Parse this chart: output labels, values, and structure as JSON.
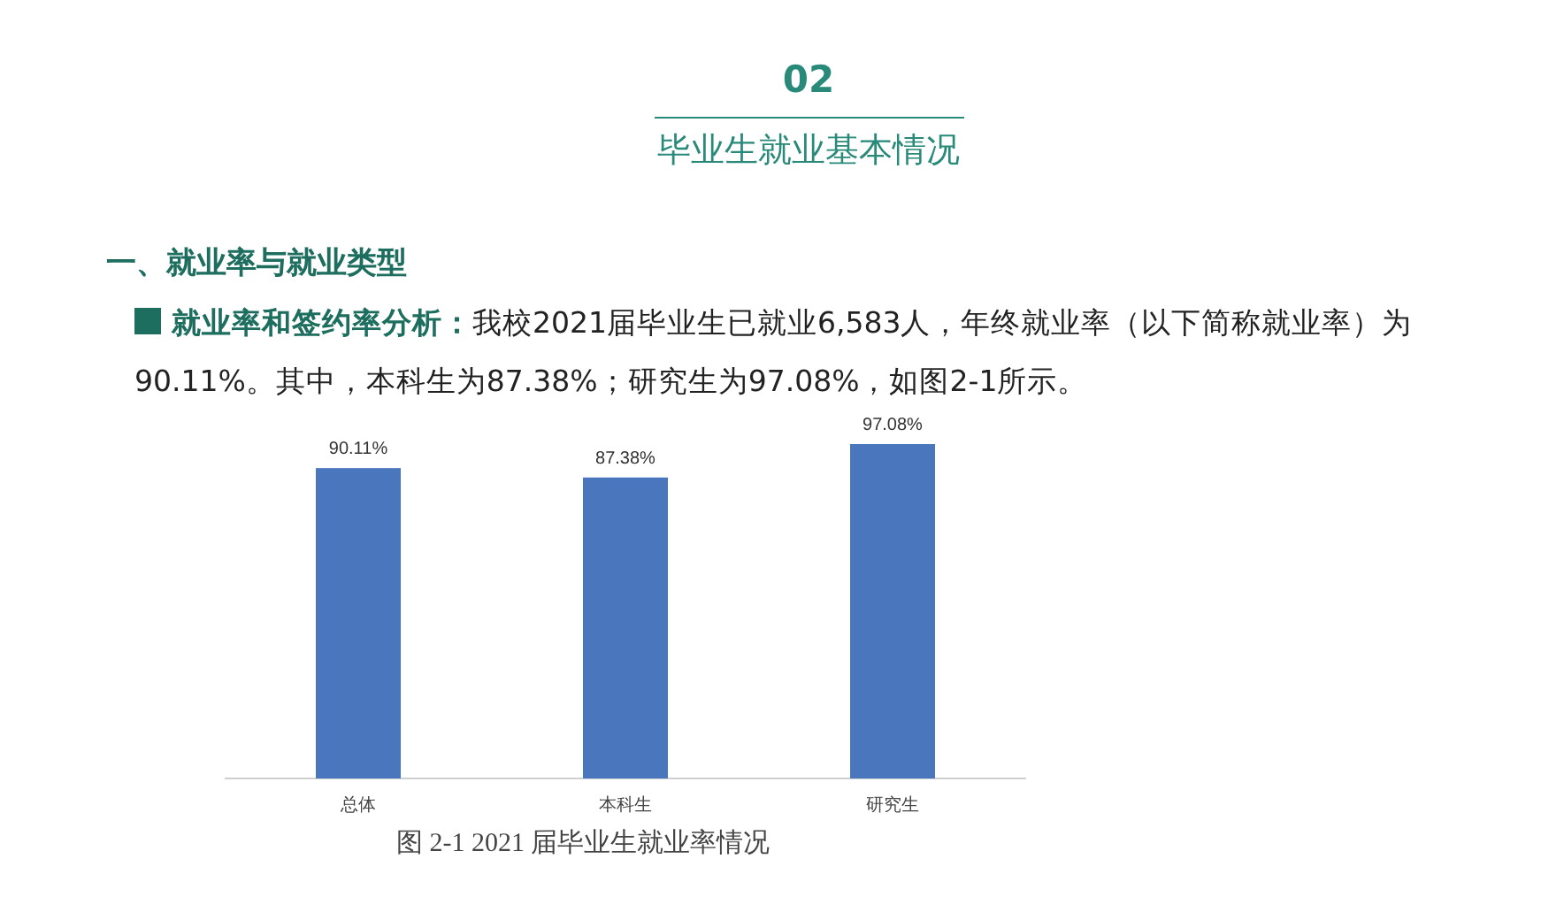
{
  "chart_data": {
    "type": "bar",
    "title": "02",
    "subtitle": "毕业生就业基本情况",
    "annotations": [
      "一、就业率与就业类型",
      "就业率和签约率分析：",
      "我校2021届毕业生已就业6,583人，年终就业率（以下简称就业率）为90.11%。其中，本科生为87.38%；研究生为97.08%，如图2-1所示。",
      "图 2-1 2021 届毕业生就业率情况"
    ],
    "categories": [
      "总体",
      "本科生",
      "研究生"
    ],
    "values": [
      90.11,
      87.38,
      97.08
    ],
    "value_labels": [
      "90.11%",
      "87.38%",
      "97.08%"
    ],
    "color": "#4a76bd"
  }
}
